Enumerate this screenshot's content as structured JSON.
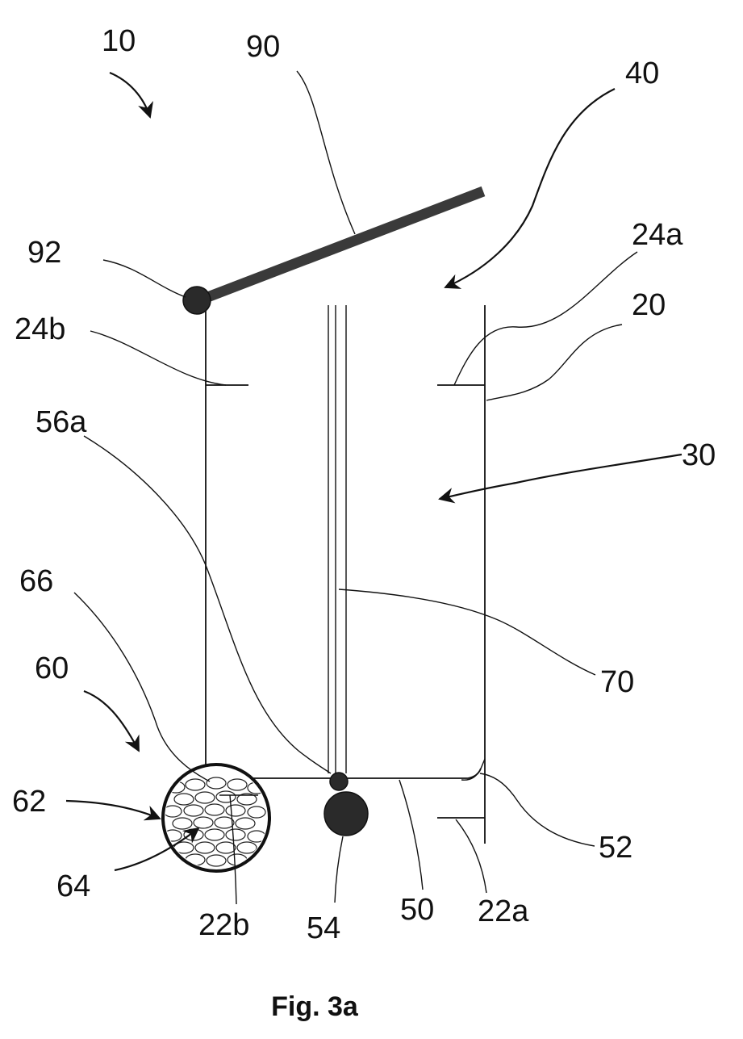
{
  "figure": {
    "caption": "Fig. 3a",
    "labels": {
      "l10": "10",
      "l90": "90",
      "l40": "40",
      "l92": "92",
      "l24a": "24a",
      "l20": "20",
      "l24b": "24b",
      "l56a": "56a",
      "l30": "30",
      "l66": "66",
      "l70": "70",
      "l60": "60",
      "l62": "62",
      "l52": "52",
      "l64": "64",
      "l22b": "22b",
      "l54": "54",
      "l50": "50",
      "l22a": "22a"
    }
  }
}
